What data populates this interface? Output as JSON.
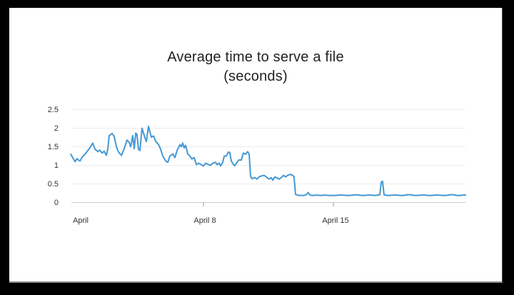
{
  "window": {
    "background": "#000000",
    "card_background": "#ffffff"
  },
  "chart_data": {
    "type": "line",
    "title": "Average time to serve a file",
    "subtitle": "(seconds)",
    "legend": "none",
    "grid": "horizontal",
    "colors": {
      "line": "#4598d3",
      "grid": "#ececec",
      "axis": "#c8c8c8",
      "tick": "#9a9a9a",
      "label_text": "#333333",
      "title_text": "#222222"
    },
    "x_axis": {
      "unit": "date",
      "ticks": [
        {
          "label": "April",
          "day": 0,
          "tick_mark": false
        },
        {
          "label": "April 8",
          "day": 7,
          "tick_mark": true
        },
        {
          "label": "April 15",
          "day": 14,
          "tick_mark": true
        }
      ],
      "range_days": [
        -0.2,
        21.2
      ]
    },
    "y_axis": {
      "unit": "seconds",
      "ticks": [
        {
          "label": "0",
          "value": 0
        },
        {
          "label": "0.5",
          "value": 0.5
        },
        {
          "label": "1",
          "value": 1
        },
        {
          "label": "1.5",
          "value": 1.5
        },
        {
          "label": "2",
          "value": 2
        },
        {
          "label": "2.5",
          "value": 2.5
        }
      ],
      "range": [
        0,
        2.5
      ]
    },
    "series": [
      {
        "name": "average_time_to_serve_file_seconds",
        "color": "#4598d3",
        "points": [
          [
            -0.15,
            1.3
          ],
          [
            0.0,
            1.17
          ],
          [
            0.08,
            1.1
          ],
          [
            0.19,
            1.18
          ],
          [
            0.27,
            1.14
          ],
          [
            0.35,
            1.12
          ],
          [
            0.46,
            1.22
          ],
          [
            0.65,
            1.32
          ],
          [
            0.85,
            1.45
          ],
          [
            1.04,
            1.6
          ],
          [
            1.15,
            1.44
          ],
          [
            1.31,
            1.37
          ],
          [
            1.42,
            1.41
          ],
          [
            1.54,
            1.33
          ],
          [
            1.65,
            1.38
          ],
          [
            1.77,
            1.27
          ],
          [
            1.85,
            1.45
          ],
          [
            1.92,
            1.8
          ],
          [
            2.08,
            1.86
          ],
          [
            2.19,
            1.78
          ],
          [
            2.31,
            1.5
          ],
          [
            2.42,
            1.36
          ],
          [
            2.58,
            1.27
          ],
          [
            2.73,
            1.45
          ],
          [
            2.88,
            1.68
          ],
          [
            3.0,
            1.62
          ],
          [
            3.08,
            1.5
          ],
          [
            3.19,
            1.8
          ],
          [
            3.27,
            1.45
          ],
          [
            3.35,
            1.87
          ],
          [
            3.42,
            1.83
          ],
          [
            3.5,
            1.43
          ],
          [
            3.58,
            1.4
          ],
          [
            3.69,
            2.0
          ],
          [
            3.81,
            1.8
          ],
          [
            3.92,
            1.64
          ],
          [
            4.04,
            2.05
          ],
          [
            4.19,
            1.76
          ],
          [
            4.31,
            1.79
          ],
          [
            4.42,
            1.65
          ],
          [
            4.58,
            1.56
          ],
          [
            4.69,
            1.44
          ],
          [
            4.81,
            1.25
          ],
          [
            4.96,
            1.12
          ],
          [
            5.08,
            1.08
          ],
          [
            5.19,
            1.25
          ],
          [
            5.35,
            1.31
          ],
          [
            5.46,
            1.21
          ],
          [
            5.58,
            1.4
          ],
          [
            5.73,
            1.56
          ],
          [
            5.81,
            1.5
          ],
          [
            5.88,
            1.6
          ],
          [
            5.96,
            1.47
          ],
          [
            6.04,
            1.54
          ],
          [
            6.15,
            1.31
          ],
          [
            6.27,
            1.25
          ],
          [
            6.38,
            1.17
          ],
          [
            6.5,
            1.21
          ],
          [
            6.62,
            1.02
          ],
          [
            6.73,
            1.06
          ],
          [
            6.88,
            1.02
          ],
          [
            7.0,
            0.98
          ],
          [
            7.12,
            1.06
          ],
          [
            7.27,
            1.02
          ],
          [
            7.38,
            1.0
          ],
          [
            7.5,
            1.06
          ],
          [
            7.65,
            1.08
          ],
          [
            7.73,
            1.02
          ],
          [
            7.85,
            1.06
          ],
          [
            7.92,
            0.98
          ],
          [
            8.04,
            1.08
          ],
          [
            8.12,
            1.25
          ],
          [
            8.23,
            1.25
          ],
          [
            8.35,
            1.36
          ],
          [
            8.42,
            1.34
          ],
          [
            8.5,
            1.12
          ],
          [
            8.62,
            1.02
          ],
          [
            8.69,
            0.99
          ],
          [
            8.81,
            1.08
          ],
          [
            8.92,
            1.15
          ],
          [
            9.04,
            1.14
          ],
          [
            9.15,
            1.33
          ],
          [
            9.27,
            1.3
          ],
          [
            9.38,
            1.37
          ],
          [
            9.46,
            1.3
          ],
          [
            9.54,
            0.7
          ],
          [
            9.62,
            0.64
          ],
          [
            9.77,
            0.67
          ],
          [
            9.88,
            0.63
          ],
          [
            10.0,
            0.69
          ],
          [
            10.15,
            0.72
          ],
          [
            10.27,
            0.73
          ],
          [
            10.38,
            0.69
          ],
          [
            10.54,
            0.63
          ],
          [
            10.65,
            0.67
          ],
          [
            10.73,
            0.6
          ],
          [
            10.85,
            0.69
          ],
          [
            10.96,
            0.66
          ],
          [
            11.08,
            0.63
          ],
          [
            11.19,
            0.67
          ],
          [
            11.31,
            0.73
          ],
          [
            11.42,
            0.69
          ],
          [
            11.54,
            0.73
          ],
          [
            11.69,
            0.76
          ],
          [
            11.81,
            0.73
          ],
          [
            11.88,
            0.69
          ],
          [
            11.96,
            0.22
          ],
          [
            12.12,
            0.19
          ],
          [
            12.27,
            0.19
          ],
          [
            12.42,
            0.19
          ],
          [
            12.54,
            0.21
          ],
          [
            12.65,
            0.27
          ],
          [
            12.73,
            0.2
          ],
          [
            12.88,
            0.19
          ],
          [
            13.1,
            0.2
          ],
          [
            13.35,
            0.19
          ],
          [
            13.54,
            0.2
          ],
          [
            13.8,
            0.19
          ],
          [
            14.12,
            0.19
          ],
          [
            14.35,
            0.2
          ],
          [
            14.5,
            0.2
          ],
          [
            14.73,
            0.19
          ],
          [
            14.88,
            0.19
          ],
          [
            15.08,
            0.2
          ],
          [
            15.27,
            0.21
          ],
          [
            15.5,
            0.19
          ],
          [
            15.65,
            0.19
          ],
          [
            15.9,
            0.2
          ],
          [
            16.04,
            0.2
          ],
          [
            16.2,
            0.19
          ],
          [
            16.35,
            0.2
          ],
          [
            16.5,
            0.21
          ],
          [
            16.58,
            0.55
          ],
          [
            16.65,
            0.57
          ],
          [
            16.73,
            0.21
          ],
          [
            16.9,
            0.19
          ],
          [
            17.0,
            0.19
          ],
          [
            17.2,
            0.2
          ],
          [
            17.38,
            0.2
          ],
          [
            17.6,
            0.19
          ],
          [
            17.77,
            0.19
          ],
          [
            18.0,
            0.21
          ],
          [
            18.15,
            0.21
          ],
          [
            18.35,
            0.19
          ],
          [
            18.54,
            0.19
          ],
          [
            18.73,
            0.2
          ],
          [
            18.92,
            0.2
          ],
          [
            19.1,
            0.19
          ],
          [
            19.31,
            0.19
          ],
          [
            19.5,
            0.2
          ],
          [
            19.69,
            0.2
          ],
          [
            19.9,
            0.19
          ],
          [
            20.08,
            0.19
          ],
          [
            20.3,
            0.21
          ],
          [
            20.46,
            0.21
          ],
          [
            20.65,
            0.19
          ],
          [
            20.85,
            0.19
          ],
          [
            21.0,
            0.2
          ],
          [
            21.12,
            0.2
          ]
        ]
      }
    ]
  }
}
